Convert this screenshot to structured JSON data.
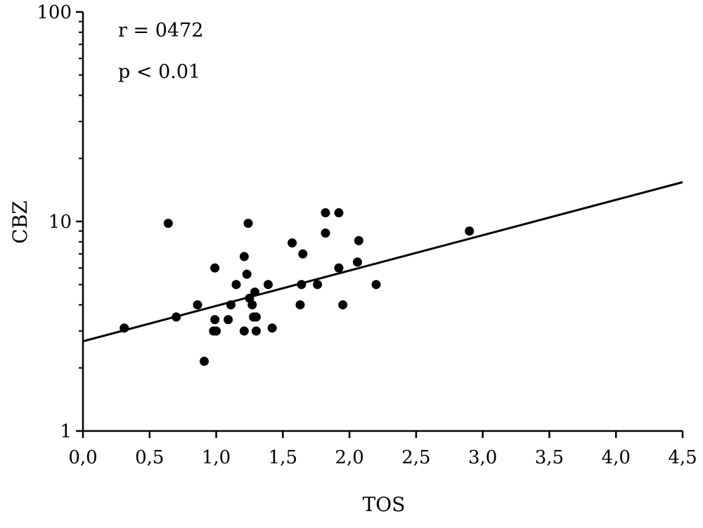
{
  "chart_data": {
    "type": "scatter",
    "xlabel": "TOS",
    "ylabel": "CBZ",
    "xlim": [
      0,
      4.5
    ],
    "ylim": [
      1,
      100
    ],
    "y_scale": "log",
    "grid": false,
    "x_ticks": [
      0,
      0.5,
      1,
      1.5,
      2,
      2.5,
      3,
      3.5,
      4,
      4.5
    ],
    "x_tick_labels": [
      "0,0",
      "0,5",
      "1,0",
      "1,5",
      "2,0",
      "2,5",
      "3,0",
      "3,5",
      "4,0",
      "4,5"
    ],
    "y_ticks": [
      1,
      10,
      100
    ],
    "y_tick_labels": [
      "1",
      "10",
      "100"
    ],
    "annotations": [
      "r = 0472",
      "p < 0.01"
    ],
    "points": [
      {
        "x": 0.31,
        "y": 3.1
      },
      {
        "x": 0.64,
        "y": 9.8
      },
      {
        "x": 0.7,
        "y": 3.5
      },
      {
        "x": 0.86,
        "y": 4.0
      },
      {
        "x": 0.91,
        "y": 2.15
      },
      {
        "x": 0.98,
        "y": 3.0
      },
      {
        "x": 0.99,
        "y": 6.0
      },
      {
        "x": 0.99,
        "y": 3.4
      },
      {
        "x": 1.0,
        "y": 3.0
      },
      {
        "x": 1.09,
        "y": 3.4
      },
      {
        "x": 1.11,
        "y": 4.0
      },
      {
        "x": 1.15,
        "y": 5.0
      },
      {
        "x": 1.21,
        "y": 6.8
      },
      {
        "x": 1.21,
        "y": 3.0
      },
      {
        "x": 1.23,
        "y": 5.6
      },
      {
        "x": 1.24,
        "y": 9.8
      },
      {
        "x": 1.25,
        "y": 4.3
      },
      {
        "x": 1.27,
        "y": 4.0
      },
      {
        "x": 1.28,
        "y": 3.5
      },
      {
        "x": 1.29,
        "y": 4.6
      },
      {
        "x": 1.3,
        "y": 3.5
      },
      {
        "x": 1.3,
        "y": 3.0
      },
      {
        "x": 1.39,
        "y": 5.0
      },
      {
        "x": 1.42,
        "y": 3.1
      },
      {
        "x": 1.57,
        "y": 7.9
      },
      {
        "x": 1.63,
        "y": 4.0
      },
      {
        "x": 1.64,
        "y": 5.0
      },
      {
        "x": 1.65,
        "y": 7.0
      },
      {
        "x": 1.76,
        "y": 5.0
      },
      {
        "x": 1.82,
        "y": 11.0
      },
      {
        "x": 1.82,
        "y": 8.8
      },
      {
        "x": 1.92,
        "y": 11.0
      },
      {
        "x": 1.92,
        "y": 6.0
      },
      {
        "x": 1.95,
        "y": 4.0
      },
      {
        "x": 2.06,
        "y": 6.4
      },
      {
        "x": 2.07,
        "y": 8.1
      },
      {
        "x": 2.2,
        "y": 5.0
      },
      {
        "x": 2.9,
        "y": 9.0
      }
    ],
    "regression_line": {
      "x": [
        0,
        4.5
      ],
      "y": [
        2.68,
        15.4
      ]
    }
  }
}
